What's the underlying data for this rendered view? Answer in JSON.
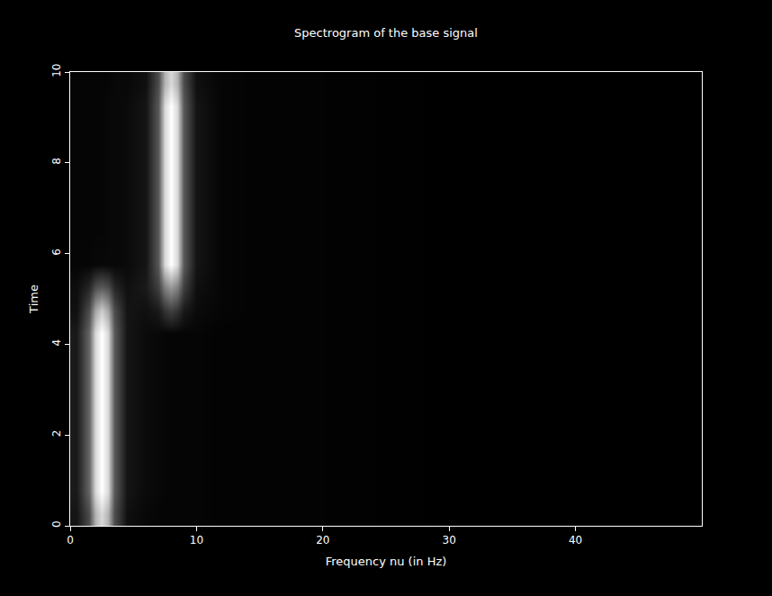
{
  "chart_data": {
    "type": "heatmap",
    "title": "Spectrogram of the base signal",
    "x_label": "Frequency nu (in Hz)",
    "y_label": "Time",
    "x": [
      0.5,
      1.5,
      2,
      2.5,
      3,
      3.5,
      4.5,
      6,
      7,
      7.5,
      8,
      8.5,
      9,
      10,
      12,
      15,
      20,
      30,
      40,
      49.5
    ],
    "y": [
      0.25,
      0.75,
      1.5,
      2.5,
      3.5,
      4.25,
      4.75,
      5.25,
      5.75,
      6.5,
      7.5,
      8.5,
      9.25,
      9.75
    ],
    "z": [
      [
        0.08,
        0.3,
        0.7,
        0.85,
        0.7,
        0.3,
        0.06,
        0.03,
        0.02,
        0.02,
        0.02,
        0.02,
        0.02,
        0.02,
        0.01,
        0.01,
        0.01,
        0,
        0,
        0
      ],
      [
        0.1,
        0.4,
        0.85,
        1.0,
        0.85,
        0.35,
        0.08,
        0.04,
        0.03,
        0.02,
        0.02,
        0.02,
        0.02,
        0.02,
        0.01,
        0.01,
        0.01,
        0,
        0,
        0
      ],
      [
        0.1,
        0.4,
        0.85,
        1.0,
        0.85,
        0.35,
        0.08,
        0.04,
        0.03,
        0.02,
        0.02,
        0.02,
        0.02,
        0.02,
        0.01,
        0.01,
        0.01,
        0,
        0,
        0
      ],
      [
        0.1,
        0.4,
        0.85,
        1.0,
        0.85,
        0.35,
        0.08,
        0.04,
        0.03,
        0.02,
        0.02,
        0.02,
        0.02,
        0.02,
        0.01,
        0.01,
        0.01,
        0,
        0,
        0
      ],
      [
        0.1,
        0.4,
        0.85,
        1.0,
        0.85,
        0.35,
        0.08,
        0.04,
        0.03,
        0.02,
        0.02,
        0.02,
        0.02,
        0.02,
        0.01,
        0.01,
        0.01,
        0,
        0,
        0
      ],
      [
        0.1,
        0.4,
        0.85,
        1.0,
        0.85,
        0.35,
        0.08,
        0.04,
        0.03,
        0.02,
        0.02,
        0.02,
        0.02,
        0.02,
        0.01,
        0.01,
        0.01,
        0,
        0,
        0
      ],
      [
        0.06,
        0.3,
        0.65,
        0.8,
        0.65,
        0.3,
        0.08,
        0.06,
        0.1,
        0.2,
        0.25,
        0.2,
        0.1,
        0.04,
        0.02,
        0.01,
        0.01,
        0,
        0,
        0
      ],
      [
        0.05,
        0.15,
        0.3,
        0.35,
        0.3,
        0.15,
        0.06,
        0.1,
        0.25,
        0.5,
        0.6,
        0.5,
        0.25,
        0.06,
        0.02,
        0.01,
        0.01,
        0,
        0,
        0
      ],
      [
        0.02,
        0.02,
        0.03,
        0.03,
        0.03,
        0.03,
        0.04,
        0.08,
        0.35,
        0.85,
        1.0,
        0.85,
        0.35,
        0.08,
        0.02,
        0.01,
        0.01,
        0,
        0,
        0
      ],
      [
        0.02,
        0.02,
        0.02,
        0.02,
        0.03,
        0.03,
        0.04,
        0.08,
        0.35,
        0.85,
        1.0,
        0.85,
        0.35,
        0.08,
        0.02,
        0.01,
        0.01,
        0,
        0,
        0
      ],
      [
        0.02,
        0.02,
        0.02,
        0.02,
        0.03,
        0.03,
        0.04,
        0.08,
        0.35,
        0.85,
        1.0,
        0.85,
        0.35,
        0.08,
        0.02,
        0.01,
        0.01,
        0,
        0,
        0
      ],
      [
        0.02,
        0.02,
        0.02,
        0.02,
        0.03,
        0.03,
        0.04,
        0.08,
        0.35,
        0.85,
        1.0,
        0.85,
        0.35,
        0.08,
        0.02,
        0.01,
        0.01,
        0,
        0,
        0
      ],
      [
        0.02,
        0.02,
        0.02,
        0.02,
        0.03,
        0.03,
        0.04,
        0.08,
        0.35,
        0.85,
        1.0,
        0.85,
        0.35,
        0.08,
        0.02,
        0.01,
        0.01,
        0,
        0,
        0
      ],
      [
        0.02,
        0.02,
        0.02,
        0.02,
        0.02,
        0.03,
        0.03,
        0.06,
        0.3,
        0.7,
        0.85,
        0.7,
        0.3,
        0.06,
        0.02,
        0.01,
        0.01,
        0,
        0,
        0
      ]
    ],
    "zlim": [
      0,
      1
    ],
    "xlim": [
      0,
      50
    ],
    "ylim": [
      0,
      10
    ],
    "xticks": [
      0,
      10,
      20,
      30,
      40
    ],
    "yticks": [
      0,
      2,
      4,
      6,
      8,
      10
    ],
    "grid": false
  }
}
